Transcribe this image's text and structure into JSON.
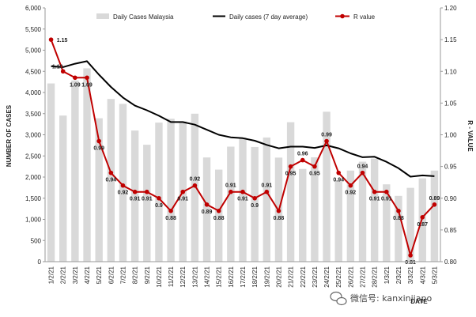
{
  "chart_data": {
    "type": "bar-line-combo",
    "dates": [
      "1/2/21",
      "2/2/21",
      "3/2/21",
      "4/2/21",
      "5/2/21",
      "6/2/21",
      "7/2/21",
      "8/2/21",
      "9/2/21",
      "10/2/21",
      "11/2/21",
      "12/2/21",
      "13/2/21",
      "14/2/21",
      "15/2/21",
      "16/2/21",
      "17/2/21",
      "18/2/21",
      "19/2/21",
      "20/2/21",
      "21/2/21",
      "22/2/21",
      "23/2/21",
      "24/2/21",
      "25/2/21",
      "26/2/21",
      "27/2/21",
      "28/2/21",
      "1/3/21",
      "2/3/21",
      "3/3/21",
      "4/3/21",
      "5/3/21"
    ],
    "series": [
      {
        "name": "Daily Cases Malaysia",
        "kind": "bar",
        "axis": "left",
        "color": "#d9d9d9",
        "values": [
          4214,
          3455,
          4284,
          4571,
          3391,
          3847,
          3731,
          3100,
          2764,
          3288,
          3379,
          3317,
          3499,
          2464,
          2176,
          2720,
          2936,
          2712,
          2936,
          2461,
          3297,
          2192,
          2468,
          3545,
          1924,
          2154,
          2364,
          2437,
          1828,
          1555,
          1745,
          1970,
          2154
        ]
      },
      {
        "name": "Daily cases (7 day average)",
        "kind": "line",
        "axis": "left",
        "color": "#000000",
        "values": [
          4620,
          4600,
          4680,
          4740,
          4420,
          4130,
          3880,
          3690,
          3580,
          3450,
          3300,
          3300,
          3240,
          3120,
          3000,
          2940,
          2920,
          2860,
          2760,
          2680,
          2720,
          2720,
          2690,
          2750,
          2680,
          2560,
          2470,
          2480,
          2360,
          2210,
          2010,
          2040,
          2020
        ]
      },
      {
        "name": "R value",
        "kind": "line-markers",
        "axis": "right",
        "color": "#c00000",
        "values": [
          1.15,
          1.1,
          1.09,
          1.09,
          0.99,
          0.94,
          0.92,
          0.91,
          0.91,
          0.9,
          0.88,
          0.91,
          0.92,
          0.89,
          0.88,
          0.91,
          0.91,
          0.9,
          0.91,
          0.88,
          0.95,
          0.96,
          0.95,
          0.99,
          0.94,
          0.92,
          0.94,
          0.91,
          0.91,
          0.88,
          0.81,
          0.87,
          0.89
        ],
        "labels": [
          "1.15",
          "1.10",
          "1.09",
          "1.09",
          "0.99",
          "0.94",
          "0.92",
          "0.91",
          "0.91",
          "0.9",
          "0.88",
          "0.91",
          "0.92",
          "0.89",
          "0.88",
          "0.91",
          "0.91",
          "0.9",
          "0.91",
          "0.88",
          "0.95",
          "0.96",
          "0.95",
          "0.99",
          "0.94",
          "0.92",
          "0.94",
          "0.91",
          "0.91",
          "0.88",
          "0.81",
          "0.87",
          "0.89"
        ]
      }
    ],
    "y_left": {
      "label": "NUMBER OF CASES",
      "min": 0,
      "max": 6000,
      "step": 500,
      "ticks": [
        "0",
        "500",
        "1,000",
        "1,500",
        "2,000",
        "2,500",
        "3,000",
        "3,500",
        "4,000",
        "4,500",
        "5,000",
        "5,500",
        "6,000"
      ]
    },
    "y_right": {
      "label": "R - VALUE",
      "min": 0.8,
      "max": 1.2,
      "step": 0.05,
      "ticks": [
        "0.80",
        "0.85",
        "0.90",
        "0.95",
        "1.00",
        "1.05",
        "1.10",
        "1.15",
        "1.20"
      ]
    },
    "xlabel": "DATE",
    "legend_position": "top",
    "grid": false
  },
  "watermark": {
    "text": "微信号: kanxinjiapo",
    "icon": "wechat-icon"
  }
}
